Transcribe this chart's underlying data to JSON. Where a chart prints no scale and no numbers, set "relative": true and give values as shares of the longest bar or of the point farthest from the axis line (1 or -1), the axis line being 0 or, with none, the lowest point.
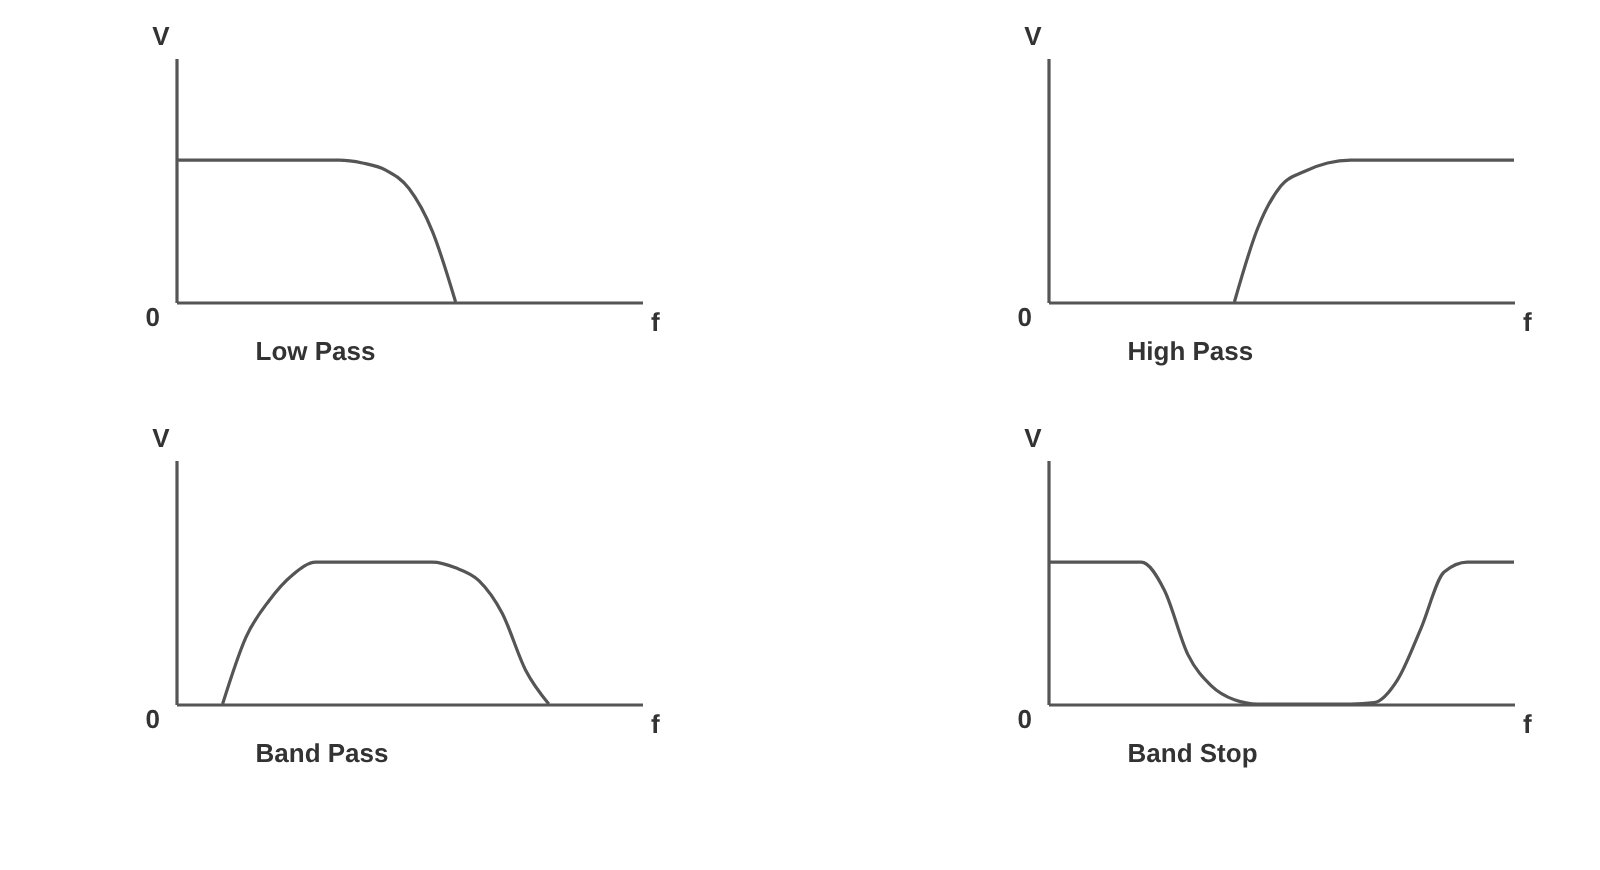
{
  "chart_data": [
    {
      "type": "line",
      "title": "Low Pass",
      "xlabel": "f",
      "ylabel": "V",
      "relative": true,
      "color": "#555555",
      "annotations": [
        "0"
      ],
      "categories": [
        null,
        null,
        null,
        null,
        null,
        null,
        null,
        null,
        null,
        null,
        null,
        null,
        null,
        null,
        null,
        null,
        null,
        null,
        null,
        null,
        null
      ],
      "values": [
        1,
        1,
        1,
        1,
        1,
        1,
        1,
        1,
        0.98,
        0.93,
        0.8,
        0.5,
        0,
        null,
        null,
        null,
        null,
        null,
        null,
        null,
        null
      ]
    },
    {
      "type": "line",
      "title": "High Pass",
      "xlabel": "f",
      "ylabel": "V",
      "relative": true,
      "color": "#555555",
      "annotations": [
        "0"
      ],
      "categories": [
        null,
        null,
        null,
        null,
        null,
        null,
        null,
        null,
        null,
        null,
        null,
        null,
        null,
        null,
        null,
        null,
        null,
        null,
        null,
        null,
        null
      ],
      "values": [
        null,
        null,
        null,
        null,
        null,
        null,
        null,
        null,
        0,
        0.52,
        0.82,
        0.92,
        0.98,
        1,
        1,
        1,
        1,
        1,
        1,
        1,
        1
      ]
    },
    {
      "type": "line",
      "title": "Band Pass",
      "xlabel": "f",
      "ylabel": "V",
      "relative": true,
      "color": "#555555",
      "annotations": [
        "0"
      ],
      "categories": [
        null,
        null,
        null,
        null,
        null,
        null,
        null,
        null,
        null,
        null,
        null,
        null,
        null,
        null,
        null,
        null,
        null,
        null,
        null,
        null,
        null
      ],
      "values": [
        null,
        null,
        0,
        0.47,
        0.73,
        0.91,
        1,
        1,
        1,
        1,
        1,
        1,
        0.96,
        0.87,
        0.64,
        0.24,
        0,
        null,
        null,
        null,
        null
      ]
    },
    {
      "type": "line",
      "title": "Band Stop",
      "xlabel": "f",
      "ylabel": "V",
      "relative": true,
      "color": "#555555",
      "annotations": [
        "0"
      ],
      "categories": [
        null,
        null,
        null,
        null,
        null,
        null,
        null,
        null,
        null,
        null,
        null,
        null,
        null,
        null,
        null,
        null,
        null,
        null,
        null,
        null,
        null
      ],
      "values": [
        1,
        1,
        1,
        1,
        1,
        0.8,
        0.35,
        0.13,
        0.03,
        0,
        0,
        0,
        0,
        0,
        0.01,
        0.17,
        0.53,
        0.93,
        1,
        1,
        1
      ]
    }
  ]
}
